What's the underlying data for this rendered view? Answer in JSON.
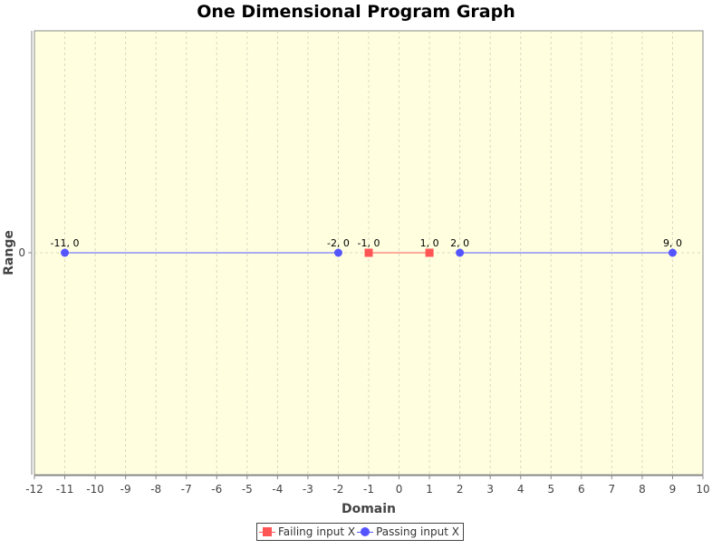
{
  "chart_data": {
    "type": "line",
    "title": "One Dimensional Program Graph",
    "xlabel": "Domain",
    "ylabel": "Range",
    "xlim": [
      -12,
      10
    ],
    "x_ticks": [
      -12,
      -11,
      -10,
      -9,
      -8,
      -7,
      -6,
      -5,
      -4,
      -3,
      -2,
      -1,
      0,
      1,
      2,
      3,
      4,
      5,
      6,
      7,
      8,
      9,
      10
    ],
    "y_ticks": [
      0
    ],
    "grid": true,
    "legend_position": "bottom",
    "background_color": "#ffffe0",
    "series": [
      {
        "name": "Failing input X",
        "color": "#ff5555",
        "marker": "square",
        "segments": [
          [
            {
              "x": -1,
              "y": 0,
              "label": "-1, 0"
            },
            {
              "x": 1,
              "y": 0,
              "label": "1, 0"
            }
          ]
        ]
      },
      {
        "name": "Passing input X",
        "color": "#5555ff",
        "marker": "circle",
        "segments": [
          [
            {
              "x": -11,
              "y": 0,
              "label": "-11, 0"
            },
            {
              "x": -2,
              "y": 0,
              "label": "-2, 0"
            }
          ],
          [
            {
              "x": 2,
              "y": 0,
              "label": "2, 0"
            },
            {
              "x": 9,
              "y": 0,
              "label": "9, 0"
            }
          ]
        ]
      }
    ]
  }
}
